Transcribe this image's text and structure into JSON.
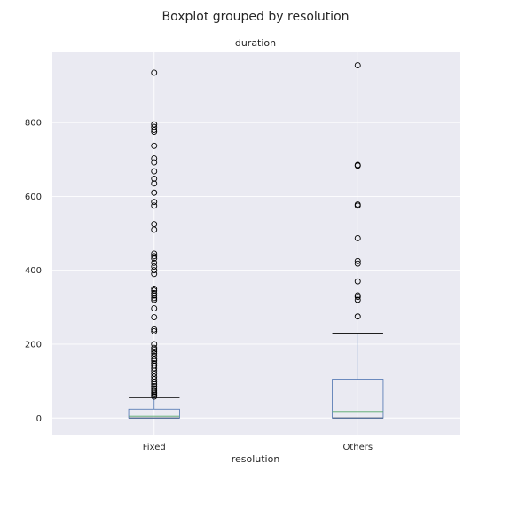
{
  "chart_data": {
    "type": "boxplot",
    "suptitle": "Boxplot grouped by resolution",
    "title": "duration",
    "xlabel": "resolution",
    "ylabel": "",
    "ylim": [
      -45,
      990
    ],
    "yticks": [
      0,
      200,
      400,
      600,
      800
    ],
    "grid": true,
    "colors": {
      "background": "#eaeaf2",
      "box": "#4c72b0",
      "median": "#55a868",
      "whisker": "#4c72b0",
      "cap": "#000000",
      "grid": "#ffffff",
      "flier_edge": "#000000"
    },
    "groups": [
      {
        "label": "Fixed",
        "whisker_low": 0,
        "q1": 0,
        "median": 5,
        "q3": 24,
        "whisker_high": 55,
        "fliers": [
          935,
          795,
          788,
          780,
          775,
          737,
          703,
          692,
          668,
          648,
          635,
          610,
          585,
          575,
          525,
          510,
          445,
          438,
          432,
          420,
          410,
          400,
          390,
          350,
          345,
          338,
          332,
          325,
          320,
          297,
          273,
          240,
          235,
          200,
          190,
          185,
          180,
          175,
          168,
          160,
          155,
          148,
          142,
          135,
          128,
          120,
          112,
          105,
          98,
          92,
          86,
          80,
          75,
          70,
          66,
          62,
          58
        ]
      },
      {
        "label": "Others",
        "whisker_low": 0,
        "q1": 0,
        "median": 18,
        "q3": 105,
        "whisker_high": 230,
        "fliers": [
          955,
          685,
          683,
          578,
          575,
          487,
          425,
          418,
          370,
          332,
          328,
          320,
          275
        ]
      }
    ]
  }
}
